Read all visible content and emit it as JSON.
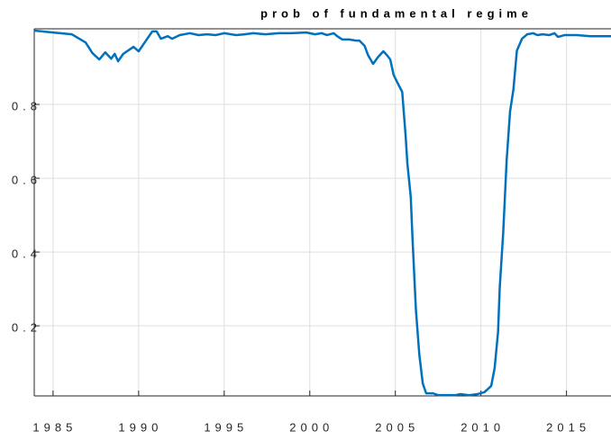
{
  "chart_data": {
    "type": "line",
    "title": "prob of fundamental regime",
    "x": [
      1983.9,
      1985,
      1986.1,
      1986.9,
      1987.3,
      1987.7,
      1988.05,
      1988.4,
      1988.6,
      1988.8,
      1989.1,
      1989.7,
      1990,
      1990.4,
      1990.8,
      1991.05,
      1991.3,
      1991.7,
      1991.95,
      1992.4,
      1993,
      1993.5,
      1994,
      1994.5,
      1995,
      1995.7,
      1996.2,
      1996.7,
      1997.4,
      1998.2,
      1998.9,
      1999.8,
      2000.3,
      2000.7,
      2001,
      2001.4,
      2001.6,
      2001.9,
      2002.3,
      2002.7,
      2002.9,
      2003.2,
      2003.4,
      2003.7,
      2004,
      2004.3,
      2004.5,
      2004.7,
      2004.9,
      2005.1,
      2005.4,
      2005.6,
      2005.7,
      2005.9,
      2006,
      2006.2,
      2006.4,
      2006.6,
      2006.8,
      2007.2,
      2007.5,
      2008.5,
      2008.8,
      2009.3,
      2009.8,
      2010.2,
      2010.6,
      2010.8,
      2011,
      2011.1,
      2011.3,
      2011.5,
      2011.7,
      2011.9,
      2012.1,
      2012.4,
      2012.7,
      2013.05,
      2013.3,
      2013.6,
      2014,
      2014.3,
      2014.5,
      2014.9,
      2015.6,
      2016.4,
      2017.6
    ],
    "series": [
      {
        "color": "#0072bd",
        "values": [
          1.0,
          0.995,
          0.99,
          0.968,
          0.939,
          0.922,
          0.941,
          0.924,
          0.937,
          0.917,
          0.937,
          0.956,
          0.944,
          0.971,
          0.998,
          0.998,
          0.978,
          0.985,
          0.978,
          0.988,
          0.993,
          0.988,
          0.99,
          0.988,
          0.993,
          0.988,
          0.99,
          0.993,
          0.99,
          0.993,
          0.993,
          0.995,
          0.99,
          0.993,
          0.988,
          0.993,
          0.985,
          0.976,
          0.976,
          0.973,
          0.973,
          0.959,
          0.934,
          0.91,
          0.929,
          0.944,
          0.934,
          0.922,
          0.88,
          0.861,
          0.834,
          0.715,
          0.641,
          0.549,
          0.439,
          0.244,
          0.122,
          0.044,
          0.017,
          0.017,
          0.012,
          0.012,
          0.015,
          0.012,
          0.015,
          0.02,
          0.037,
          0.085,
          0.183,
          0.305,
          0.451,
          0.646,
          0.78,
          0.841,
          0.946,
          0.978,
          0.99,
          0.993,
          0.988,
          0.99,
          0.988,
          0.993,
          0.983,
          0.988,
          0.988,
          0.985,
          0.985
        ]
      }
    ],
    "xlim": [
      1983.9,
      2017.6
    ],
    "xticks": [
      1985,
      1990,
      1995,
      2000,
      2005,
      2010,
      2015
    ],
    "ylim": [
      0.01,
      1.005
    ],
    "yticks": [
      0.2,
      0.4,
      0.6,
      0.8
    ],
    "grid": true
  }
}
